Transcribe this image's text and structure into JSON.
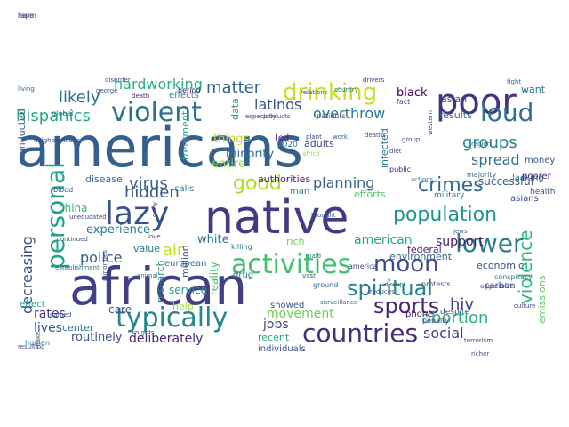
{
  "cloud": {
    "words": [
      {
        "text": "americans",
        "color": "#35608d"
      },
      {
        "text": "african",
        "color": "#423f85"
      },
      {
        "text": "native",
        "color": "#443a83"
      },
      {
        "text": "poor",
        "color": "#46337e"
      },
      {
        "text": "lazy",
        "color": "#3b518b"
      },
      {
        "text": "violent",
        "color": "#2d718e"
      },
      {
        "text": "typically",
        "color": "#24868e"
      },
      {
        "text": "countries",
        "color": "#472f7d"
      },
      {
        "text": "personal",
        "color": "#20a386"
      },
      {
        "text": "activities",
        "color": "#44bf70"
      },
      {
        "text": "drinking",
        "color": "#c8e020"
      },
      {
        "text": "loud",
        "color": "#2c728e"
      },
      {
        "text": "lower",
        "color": "#287d8e"
      },
      {
        "text": "moon",
        "color": "#3e4989"
      },
      {
        "text": "spiritual",
        "color": "#27808e"
      },
      {
        "text": "sports",
        "color": "#482475"
      },
      {
        "text": "population",
        "color": "#1f958b"
      },
      {
        "text": "crimes",
        "color": "#31688e"
      },
      {
        "text": "hispanics",
        "color": "#25ab82"
      },
      {
        "text": "hardworking",
        "color": "#2ab07f"
      },
      {
        "text": "matter",
        "color": "#33638d"
      },
      {
        "text": "likely",
        "color": "#2e6f8e"
      },
      {
        "text": "latinos",
        "color": "#3b528b"
      },
      {
        "text": "overthrow",
        "color": "#2a788e"
      },
      {
        "text": "good",
        "color": "#addc30"
      },
      {
        "text": "virus",
        "color": "#34618d"
      },
      {
        "text": "hidden",
        "color": "#39568c"
      },
      {
        "text": "air",
        "color": "#bddf26"
      },
      {
        "text": "police",
        "color": "#355f8d"
      },
      {
        "text": "decreasing",
        "color": "#3e4989"
      },
      {
        "text": "violence",
        "color": "#31b57b"
      },
      {
        "text": "planning",
        "color": "#32648e"
      },
      {
        "text": "groups",
        "color": "#26818e"
      },
      {
        "text": "spread",
        "color": "#2d708e"
      },
      {
        "text": "hiv",
        "color": "#414487"
      },
      {
        "text": "abortion",
        "color": "#29af7f"
      },
      {
        "text": "social",
        "color": "#433e85"
      },
      {
        "text": "support",
        "color": "#481a6c"
      },
      {
        "text": "american",
        "color": "#22a884"
      },
      {
        "text": "jobs",
        "color": "#3f4788"
      },
      {
        "text": "lives",
        "color": "#3a548c"
      },
      {
        "text": "rates",
        "color": "#453781"
      },
      {
        "text": "movement",
        "color": "#6ece58"
      },
      {
        "text": "deliberately",
        "color": "#482878"
      },
      {
        "text": "routinely",
        "color": "#3d4e8a"
      },
      {
        "text": "black",
        "color": "#440154"
      },
      {
        "text": "asian",
        "color": "#3b518b"
      },
      {
        "text": "want",
        "color": "#2d718e"
      },
      {
        "text": "successful",
        "color": "#38598c"
      },
      {
        "text": "results",
        "color": "#306a8e"
      },
      {
        "text": "experience",
        "color": "#2a768e"
      },
      {
        "text": "china",
        "color": "#35b779"
      },
      {
        "text": "white",
        "color": "#2c738e"
      },
      {
        "text": "rich",
        "color": "#75d054"
      },
      {
        "text": "federal",
        "color": "#482071"
      },
      {
        "text": "economic",
        "color": "#3e4a89"
      },
      {
        "text": "minority",
        "color": "#2d708e"
      },
      {
        "text": "things",
        "color": "#c2df23"
      },
      {
        "text": "entire",
        "color": "#8ed645"
      },
      {
        "text": "data",
        "color": "#21918c"
      },
      {
        "text": "adults",
        "color": "#3f4889"
      },
      {
        "text": "man",
        "color": "#25838e"
      },
      {
        "text": "authorities",
        "color": "#482173"
      },
      {
        "text": "calls",
        "color": "#2a788e"
      },
      {
        "text": "disease",
        "color": "#2e6e8e"
      },
      {
        "text": "lacking",
        "color": "#2c738e"
      },
      {
        "text": "money",
        "color": "#38598c"
      },
      {
        "text": "service",
        "color": "#1f9e89"
      },
      {
        "text": "help",
        "color": "#a2da37"
      },
      {
        "text": "care",
        "color": "#3d4d8a"
      },
      {
        "text": "phone",
        "color": "#471063"
      },
      {
        "text": "recent",
        "color": "#24aa83"
      },
      {
        "text": "individuals",
        "color": "#3b528b"
      },
      {
        "text": "value",
        "color": "#297b8e"
      },
      {
        "text": "european",
        "color": "#2c728e"
      },
      {
        "text": "environment",
        "color": "#33638d"
      },
      {
        "text": "carbon",
        "color": "#404688"
      },
      {
        "text": "treatment",
        "color": "#22a785"
      },
      {
        "text": "infected",
        "color": "#29788e"
      },
      {
        "text": "conducted",
        "color": "#39568c"
      },
      {
        "text": "center",
        "color": "#2e6d8e"
      },
      {
        "text": "reality",
        "color": "#3dbc74"
      },
      {
        "text": "research",
        "color": "#24868e"
      },
      {
        "text": "efforts",
        "color": "#54c568"
      },
      {
        "text": "effects",
        "color": "#23898e"
      },
      {
        "text": "led",
        "color": "#482878"
      },
      {
        "text": "asians",
        "color": "#3e4989"
      },
      {
        "text": "poorer",
        "color": "#482374"
      },
      {
        "text": "emissions",
        "color": "#5ec962"
      },
      {
        "text": "million",
        "color": "#3a538b"
      },
      {
        "text": "drug",
        "color": "#2c728e"
      },
      {
        "text": "showed",
        "color": "#3b518b"
      },
      {
        "text": "effect",
        "color": "#1f9e89"
      },
      {
        "text": "love",
        "color": "#3b528b"
      },
      {
        "text": "america",
        "color": "#3f4788"
      },
      {
        "text": "2020",
        "color": "#2a788e"
      },
      {
        "text": "africa",
        "color": "#a8db34"
      },
      {
        "text": "patients",
        "color": "#3e4989"
      },
      {
        "text": "fact",
        "color": "#3d4e8a"
      },
      {
        "text": "military",
        "color": "#2a768e"
      },
      {
        "text": "health",
        "color": "#3b528b"
      },
      {
        "text": "majority",
        "color": "#33638d"
      },
      {
        "text": "despite",
        "color": "#38588c"
      },
      {
        "text": "human",
        "color": "#2c728e"
      },
      {
        "text": "protests",
        "color": "#3f4788"
      },
      {
        "text": "penalty",
        "color": "#3e4989"
      },
      {
        "text": "period",
        "color": "#482374"
      },
      {
        "text": "george",
        "color": "#3b528b"
      },
      {
        "text": "global",
        "color": "#2a768e"
      },
      {
        "text": "blood",
        "color": "#3e4989"
      },
      {
        "text": "uneducated",
        "color": "#3f4788"
      },
      {
        "text": "killing",
        "color": "#2c728e"
      },
      {
        "text": "ground",
        "color": "#33638d"
      },
      {
        "text": "resulting",
        "color": "#3b528b"
      },
      {
        "text": "establishment",
        "color": "#2a768e"
      },
      {
        "text": "minorities",
        "color": "#3e4989"
      },
      {
        "text": "make",
        "color": "#3f4788"
      },
      {
        "text": "animal",
        "color": "#2a768e"
      },
      {
        "text": "continued",
        "color": "#3b528b"
      },
      {
        "text": "aggressive",
        "color": "#3e4989"
      },
      {
        "text": "actions",
        "color": "#2c728e"
      },
      {
        "text": "public",
        "color": "#482374"
      },
      {
        "text": "plant",
        "color": "#3f4788"
      },
      {
        "text": "work",
        "color": "#33638d"
      },
      {
        "text": "country",
        "color": "#2c728e"
      },
      {
        "text": "drivers",
        "color": "#3e4989"
      },
      {
        "text": "disorder",
        "color": "#3b528b"
      },
      {
        "text": "especially",
        "color": "#3f4788"
      },
      {
        "text": "products",
        "color": "#3b528b"
      },
      {
        "text": "western",
        "color": "#3e4989"
      },
      {
        "text": "conspiracy",
        "color": "#2a768e"
      },
      {
        "text": "surveillance",
        "color": "#2c728e"
      },
      {
        "text": "culture",
        "color": "#3f4788"
      },
      {
        "text": "terrorism",
        "color": "#3e4989"
      },
      {
        "text": "richer",
        "color": "#3b528b"
      },
      {
        "text": "living",
        "color": "#33638d"
      },
      {
        "text": "neighborhoods",
        "color": "#3f4788"
      },
      {
        "text": "jews",
        "color": "#3b528b"
      },
      {
        "text": "region",
        "color": "#2a768e"
      },
      {
        "text": "group",
        "color": "#3e4989"
      },
      {
        "text": "diet",
        "color": "#3f4788"
      },
      {
        "text": "fight",
        "color": "#2c728e"
      },
      {
        "text": "death",
        "color": "#482374"
      },
      {
        "text": "named",
        "color": "#3b528b"
      },
      {
        "text": "knights",
        "color": "#3e4989"
      },
      {
        "text": "relations",
        "color": "#3f4788"
      },
      {
        "text": "brought",
        "color": "#3b528b"
      },
      {
        "text": "paid",
        "color": "#2a768e"
      },
      {
        "text": "vast",
        "color": "#3e4989"
      },
      {
        "text": "deny",
        "color": "#3f4788"
      },
      {
        "text": "reduces",
        "color": "#3b528b"
      },
      {
        "text": "disrupt",
        "color": "#2c728e"
      },
      {
        "text": "deaths",
        "color": "#3e4989"
      },
      {
        "text": "rape",
        "color": "#3f4788"
      },
      {
        "text": "harm",
        "color": "#3b528b"
      }
    ]
  }
}
